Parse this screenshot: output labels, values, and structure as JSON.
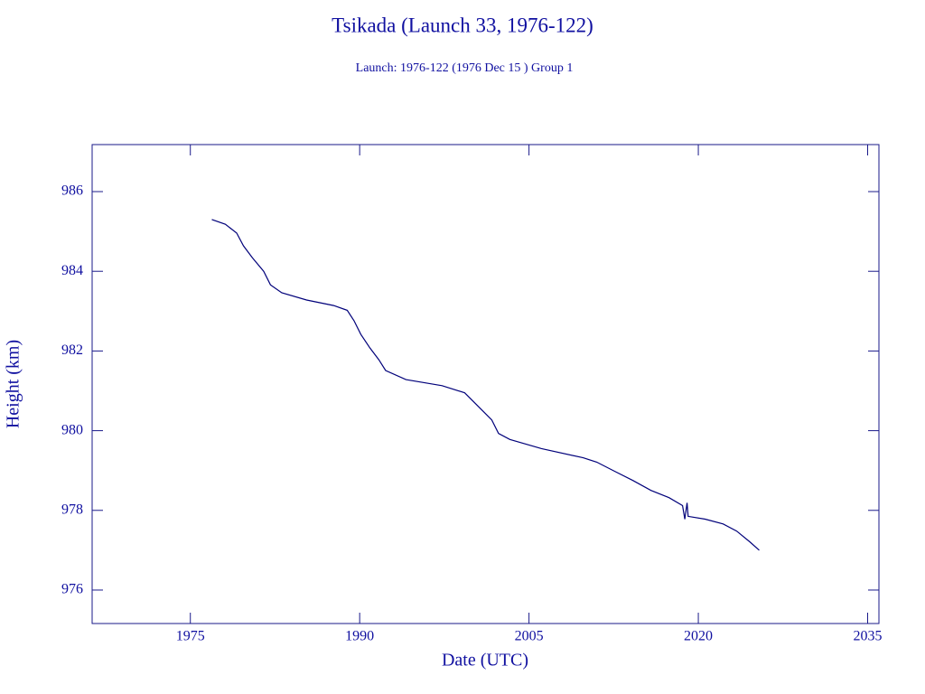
{
  "chart_data": {
    "type": "line",
    "title": "Tsikada (Launch 33, 1976-122)",
    "subtitle": "Launch: 1976-122  (1976 Dec 15 )  Group 1",
    "x_label": "Date (UTC)",
    "y_label": "Height (km)",
    "xlim": [
      1966.3,
      2036.0
    ],
    "ylim": [
      975.16,
      987.18
    ],
    "xticks": [
      1975,
      1990,
      2005,
      2020,
      2035
    ],
    "yticks": [
      976,
      978,
      980,
      982,
      984,
      986
    ],
    "series": [
      {
        "color": "#00007a",
        "x": [
          1976.9,
          1978.1,
          1979.1,
          1979.7,
          1980.5,
          1981.5,
          1982.1,
          1983.1,
          1985.3,
          1987.7,
          1988.9,
          1989.5,
          1990.1,
          1990.9,
          1991.7,
          1992.3,
          1994.1,
          1997.3,
          1999.3,
          2000.5,
          2001.7,
          2002.3,
          2003.3,
          2006.1,
          2009.8,
          2011.0,
          2012.6,
          2014.2,
          2015.8,
          2017.4,
          2018.6,
          2018.8,
          2019.0,
          2019.1,
          2020.6,
          2022.2,
          2023.4,
          2024.6,
          2025.4
        ],
        "values": [
          985.3,
          985.18,
          984.96,
          984.64,
          984.34,
          984.0,
          983.66,
          983.46,
          983.28,
          983.14,
          983.02,
          982.76,
          982.42,
          982.08,
          981.78,
          981.51,
          981.28,
          981.13,
          980.95,
          980.61,
          980.27,
          979.93,
          979.78,
          979.55,
          979.32,
          979.21,
          978.98,
          978.75,
          978.5,
          978.32,
          978.12,
          977.78,
          978.19,
          977.85,
          977.78,
          977.66,
          977.48,
          977.2,
          977.0
        ]
      }
    ]
  }
}
